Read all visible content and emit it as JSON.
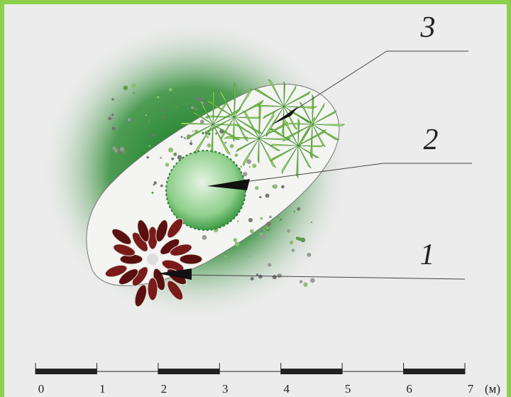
{
  "callouts": [
    {
      "label": "3"
    },
    {
      "label": "2"
    },
    {
      "label": "1"
    }
  ],
  "scale": {
    "ticks": [
      0,
      1,
      2,
      3,
      4,
      5,
      6,
      7
    ],
    "unit": "(м)"
  }
}
